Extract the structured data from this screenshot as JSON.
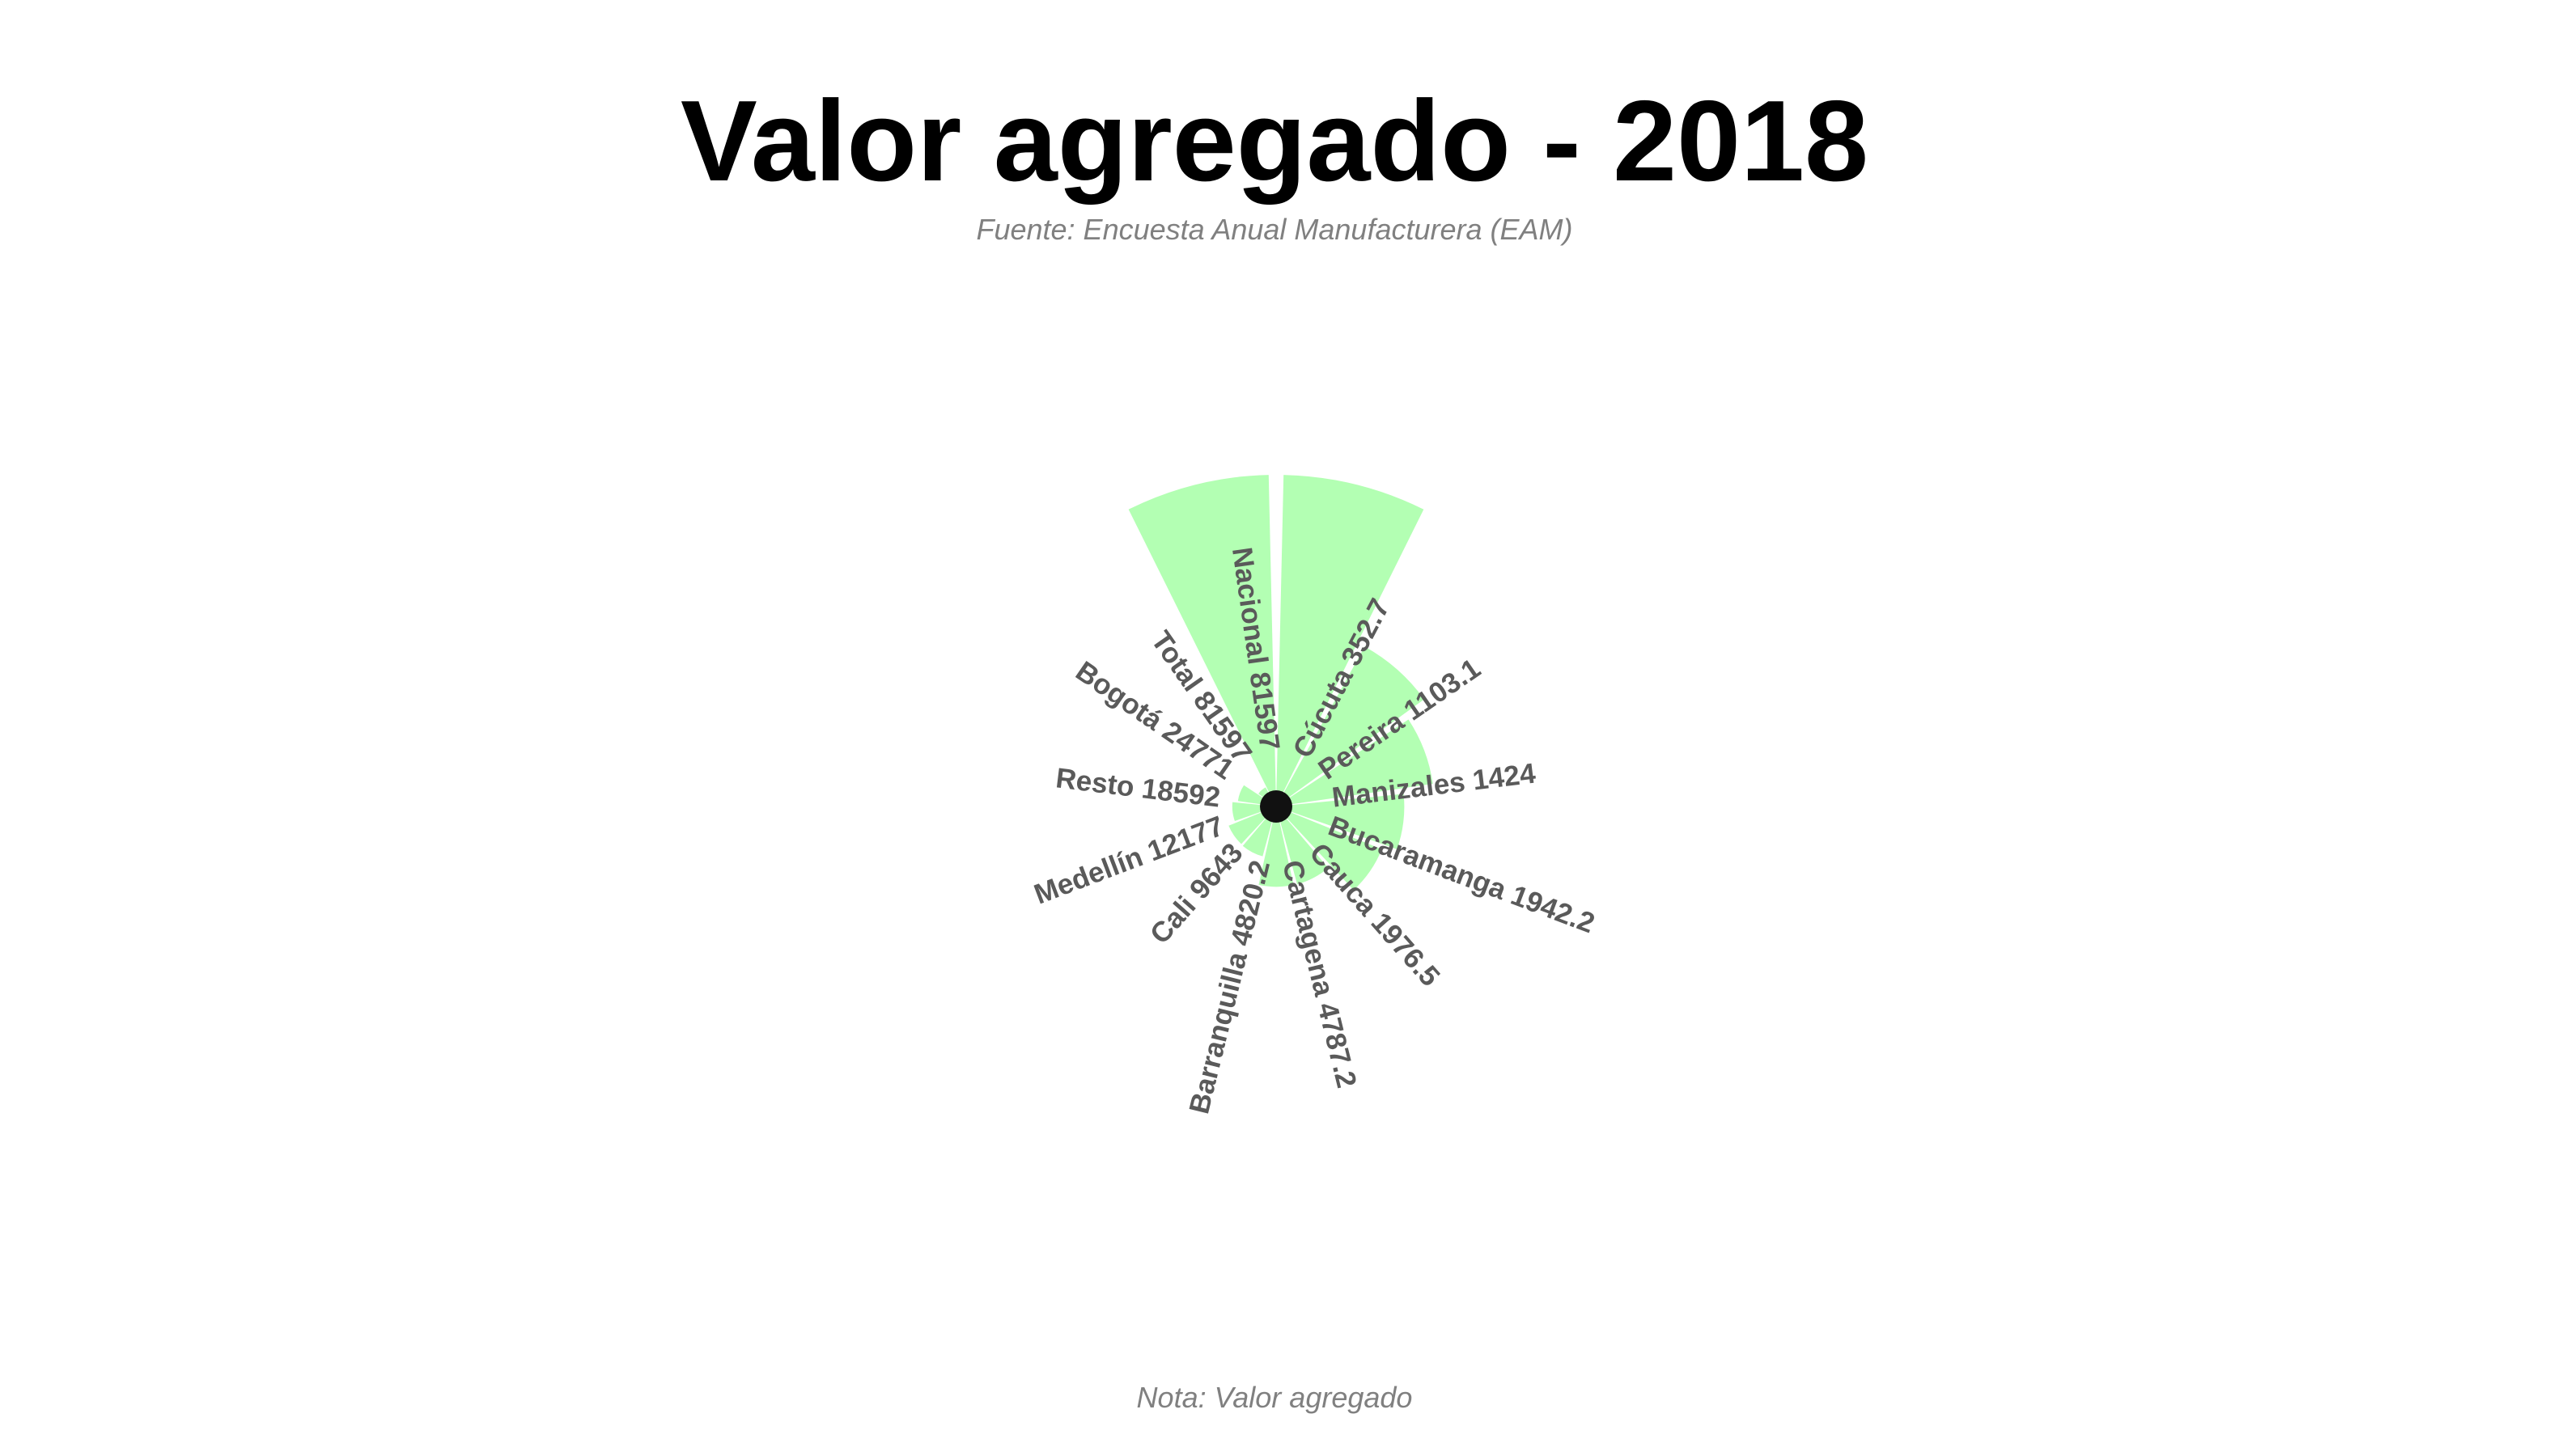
{
  "chart_data": {
    "type": "bar",
    "coord": "polar",
    "title": "Valor agregado - 2018",
    "subtitle": "Fuente: Encuesta Anual Manufacturera (EAM)",
    "caption": "Nota: Valor agregado",
    "bar_color": "#b3ffb3",
    "center_color": "#111111",
    "label_color": "#5a5a5a",
    "categories": [
      "Nacional",
      "Cúcuta",
      "Pereira",
      "Manizales",
      "Bucaramanga",
      "Cauca",
      "Cartagena",
      "Barranquilla",
      "Cali",
      "Medellín",
      "Resto",
      "Bogotá",
      "Total"
    ],
    "values": [
      81597,
      352.7,
      1103.1,
      1424,
      1942.2,
      1976.5,
      4787.2,
      4820.2,
      9643,
      12177,
      18592,
      24771,
      81597
    ],
    "labels": [
      "Nacional 81597",
      "Cúcuta 352.7",
      "Pereira 1103.1",
      "Manizales 1424",
      "Bucaramanga 1942.2",
      "Cauca 1976.5",
      "Cartagena 4787.2",
      "Barranquilla 4820.2",
      "Cali 9643",
      "Medellín 12177",
      "Resto 18592",
      "Bogotá 24771",
      "Total 81597"
    ]
  }
}
